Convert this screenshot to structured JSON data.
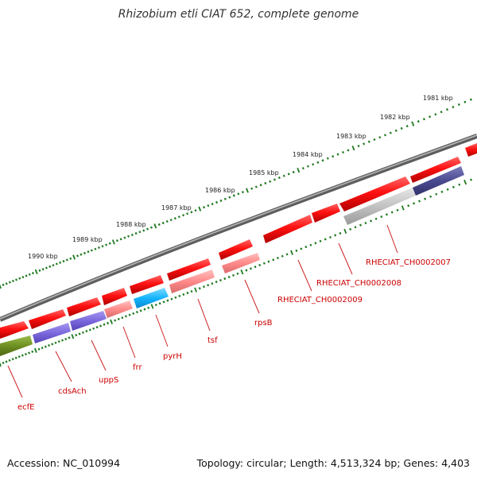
{
  "title": "Rhizobium etli CIAT 652, complete genome",
  "accession": "Accession: NC_010994",
  "topology": "Topology: circular; Length: 4,513,324 bp; Genes: 4,403",
  "colors": {
    "backbone": "#777777",
    "ticks": "#1f7a1f",
    "label": "#cc0000",
    "gene_red": "#ff1111",
    "gene_pink": "#ff8080",
    "gene_purple": "#7b68dd",
    "gene_cyan": "#15b5ff",
    "gene_olive": "#6e8f22",
    "gene_gray": "#bdbdbd",
    "gene_navy": "#4a4a90"
  },
  "scale_labels": [
    "1981 kbp",
    "1982 kbp",
    "1983 kbp",
    "1984 kbp",
    "1985 kbp",
    "1986 kbp",
    "1987 kbp",
    "1988 kbp",
    "1989 kbp",
    "1990 kbp"
  ],
  "gene_labels": [
    "RHECIAT_CH0002007",
    "RHECIAT_CH0002008",
    "RHECIAT_CH0002009",
    "rpsB",
    "tsf",
    "pyrH",
    "frr",
    "uppS",
    "cdsAch",
    "ecfE"
  ]
}
